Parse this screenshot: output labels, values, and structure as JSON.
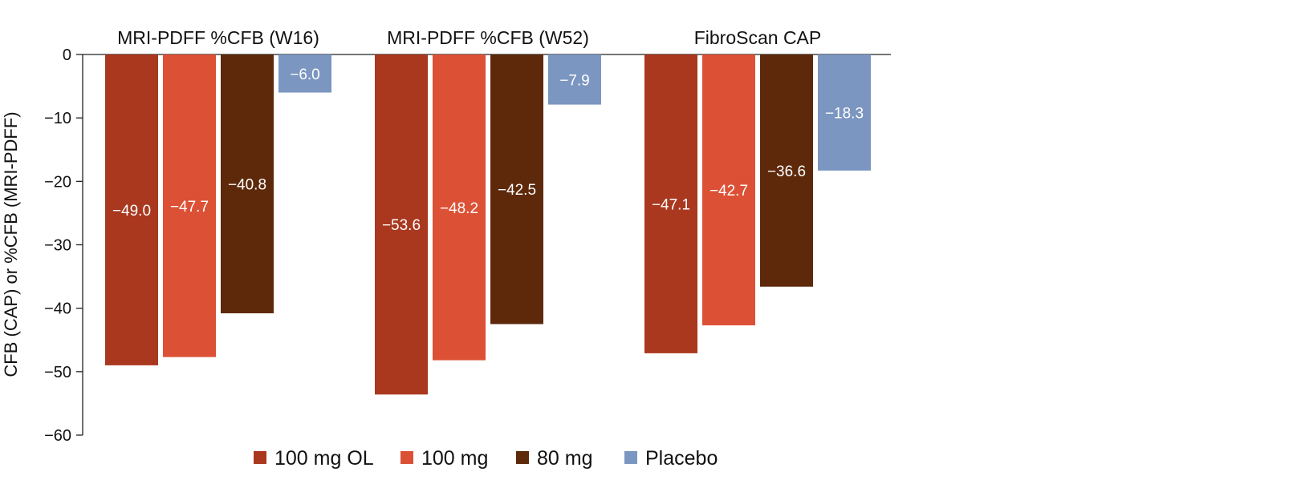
{
  "chart_data": {
    "type": "bar",
    "categories": [
      "MRI-PDFF %CFB (W16)",
      "MRI-PDFF %CFB (W52)",
      "FibroScan CAP"
    ],
    "series": [
      {
        "name": "100 mg OL",
        "color": "#a9381f",
        "values": [
          -49.0,
          -53.6,
          -47.1
        ],
        "labels": [
          "−49.0",
          "−53.6",
          "−47.1"
        ]
      },
      {
        "name": "100 mg",
        "color": "#dc5135",
        "values": [
          -47.7,
          -48.2,
          -42.7
        ],
        "labels": [
          "−47.7",
          "−48.2",
          "−42.7"
        ]
      },
      {
        "name": "80 mg",
        "color": "#5e290b",
        "values": [
          -40.8,
          -42.5,
          -36.6
        ],
        "labels": [
          "−40.8",
          "−42.5",
          "−36.6"
        ]
      },
      {
        "name": "Placebo",
        "color": "#7b96c1",
        "values": [
          -6.0,
          -7.9,
          -18.3
        ],
        "labels": [
          "−6.0",
          "−7.9",
          "−18.3"
        ]
      }
    ],
    "ylabel": "CFB (CAP) or %CFB (MRI-PDFF)",
    "xlabel": "",
    "ylim": [
      -60,
      0
    ],
    "yticks": [
      0,
      -10,
      -20,
      -30,
      -40,
      -50,
      -60
    ],
    "ytick_labels": [
      "0",
      "−10",
      "−20",
      "−30",
      "−40",
      "−50",
      "−60"
    ],
    "grid": false,
    "legend_position": "bottom"
  }
}
